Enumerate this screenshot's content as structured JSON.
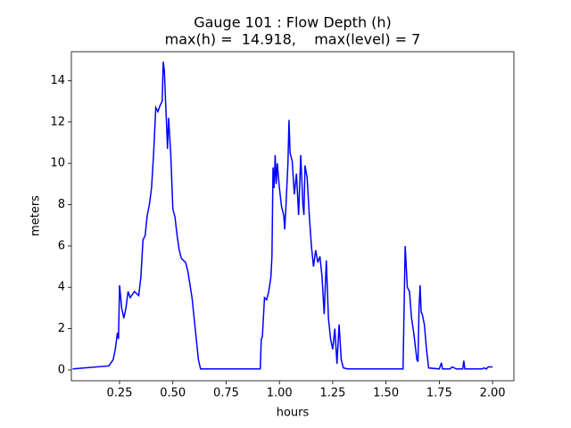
{
  "chart_data": {
    "type": "line",
    "title": "Gauge 101 : Flow Depth (h)",
    "subtitle": "max(h) =  14.918,    max(level) = 7",
    "xlabel": "hours",
    "ylabel": "meters",
    "x": [
      0.03,
      0.2,
      0.21,
      0.22,
      0.23,
      0.24,
      0.245,
      0.25,
      0.26,
      0.27,
      0.28,
      0.29,
      0.3,
      0.32,
      0.34,
      0.35,
      0.36,
      0.37,
      0.38,
      0.39,
      0.4,
      0.41,
      0.42,
      0.43,
      0.44,
      0.45,
      0.455,
      0.46,
      0.47,
      0.475,
      0.48,
      0.49,
      0.5,
      0.51,
      0.52,
      0.53,
      0.54,
      0.56,
      0.57,
      0.59,
      0.61,
      0.62,
      0.63,
      0.91,
      0.915,
      0.92,
      0.93,
      0.94,
      0.95,
      0.96,
      0.965,
      0.97,
      0.975,
      0.98,
      0.985,
      0.99,
      1.0,
      1.01,
      1.02,
      1.025,
      1.03,
      1.04,
      1.045,
      1.05,
      1.06,
      1.07,
      1.08,
      1.09,
      1.1,
      1.11,
      1.115,
      1.12,
      1.13,
      1.14,
      1.15,
      1.16,
      1.17,
      1.18,
      1.19,
      1.2,
      1.21,
      1.22,
      1.23,
      1.24,
      1.25,
      1.26,
      1.27,
      1.28,
      1.29,
      1.3,
      1.32,
      1.58,
      1.59,
      1.595,
      1.6,
      1.61,
      1.62,
      1.63,
      1.645,
      1.65,
      1.655,
      1.66,
      1.665,
      1.67,
      1.68,
      1.69,
      1.7,
      1.75,
      1.76,
      1.765,
      1.8,
      1.81,
      1.83,
      1.86,
      1.865,
      1.87,
      1.95,
      1.96,
      1.97,
      1.98,
      2.0
    ],
    "series": [
      {
        "name": "h",
        "color": "#0000ff",
        "values": [
          0.05,
          0.2,
          0.35,
          0.5,
          1.0,
          1.8,
          1.5,
          4.1,
          3.0,
          2.5,
          3.0,
          3.8,
          3.5,
          3.8,
          3.6,
          4.5,
          6.3,
          6.5,
          7.5,
          8.0,
          8.8,
          10.5,
          12.7,
          12.5,
          12.8,
          13.0,
          14.918,
          14.5,
          12.0,
          10.7,
          12.2,
          10.5,
          7.8,
          7.4,
          6.5,
          5.8,
          5.4,
          5.2,
          4.8,
          3.5,
          1.5,
          0.5,
          0.05,
          0.05,
          1.5,
          1.6,
          3.5,
          3.4,
          3.8,
          4.5,
          5.5,
          9.8,
          8.8,
          10.4,
          9.0,
          10.0,
          8.8,
          7.9,
          7.5,
          6.8,
          7.8,
          10.0,
          12.1,
          10.5,
          10.1,
          8.5,
          9.5,
          7.5,
          10.4,
          8.0,
          7.5,
          9.9,
          9.3,
          7.5,
          6.0,
          5.0,
          5.8,
          5.2,
          5.5,
          4.5,
          2.7,
          5.3,
          2.5,
          1.5,
          1.0,
          2.0,
          0.3,
          2.2,
          0.5,
          0.1,
          0.05,
          0.05,
          6.0,
          5.0,
          4.0,
          3.8,
          2.5,
          1.8,
          0.5,
          0.4,
          3.0,
          4.1,
          2.8,
          2.7,
          2.2,
          1.0,
          0.1,
          0.05,
          0.35,
          0.05,
          0.05,
          0.15,
          0.05,
          0.05,
          0.45,
          0.05,
          0.05,
          0.1,
          0.05,
          0.15,
          0.15
        ]
      }
    ],
    "xlim": [
      0.024,
      2.1
    ],
    "ylim": [
      -0.52,
      15.4
    ],
    "xticks": [
      {
        "value": 0.25,
        "label": "0.25"
      },
      {
        "value": 0.5,
        "label": "0.50"
      },
      {
        "value": 0.75,
        "label": "0.75"
      },
      {
        "value": 1.0,
        "label": "1.00"
      },
      {
        "value": 1.25,
        "label": "1.25"
      },
      {
        "value": 1.5,
        "label": "1.50"
      },
      {
        "value": 1.75,
        "label": "1.75"
      },
      {
        "value": 2.0,
        "label": "2.00"
      }
    ],
    "yticks": [
      0,
      2,
      4,
      6,
      8,
      10,
      12,
      14
    ]
  }
}
